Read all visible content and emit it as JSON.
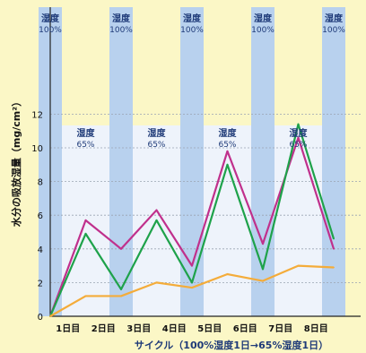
{
  "chart_data": {
    "type": "line",
    "xlabel": "サイクル（100%湿度1日→65%湿度1日）",
    "ylabel": "水分の吸放湿量（mg/cm²）",
    "ylim": [
      0,
      14
    ],
    "yticks": [
      0,
      2,
      4,
      6,
      8,
      10,
      12
    ],
    "grid": true,
    "day_labels": [
      "1日目",
      "2日目",
      "3日目",
      "4日目",
      "5日目",
      "6日目",
      "7日目",
      "8日目"
    ],
    "annotations": {
      "humid_high": [
        "湿度",
        "100%"
      ],
      "humid_low": [
        "湿度",
        "65%"
      ]
    },
    "colors": {
      "magenta": "#c0308c",
      "green": "#1ea24a",
      "orange": "#f4ac3a",
      "band100": "#b8d1ee",
      "band65": "#eef3fb"
    },
    "x": [
      0,
      1,
      2,
      3,
      4,
      5,
      6,
      7,
      8
    ],
    "series": [
      {
        "color": "#c0308c",
        "values": [
          0,
          5.7,
          4.0,
          6.3,
          3.0,
          9.8,
          4.3,
          10.6,
          4.0
        ]
      },
      {
        "color": "#1ea24a",
        "values": [
          0,
          4.9,
          1.6,
          5.7,
          2.0,
          9.0,
          2.8,
          11.4,
          4.6
        ]
      },
      {
        "color": "#f4ac3a",
        "values": [
          0,
          1.2,
          1.2,
          2.0,
          1.7,
          2.5,
          2.1,
          3.0,
          2.9
        ]
      }
    ]
  }
}
